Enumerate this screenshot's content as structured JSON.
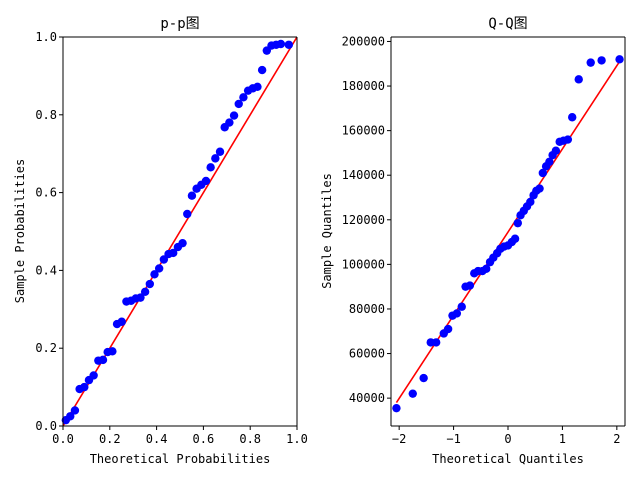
{
  "chart_data": [
    {
      "type": "scatter",
      "title": "p-p图",
      "xlabel": "Theoretical Probabilities",
      "ylabel": "Sample Probabilities",
      "xlim": [
        0,
        1
      ],
      "ylim": [
        0,
        1
      ],
      "xticks": [
        0.0,
        0.2,
        0.4,
        0.6,
        0.8,
        1.0
      ],
      "yticks": [
        0.0,
        0.2,
        0.4,
        0.6,
        0.8,
        1.0
      ],
      "xtick_labels": [
        "0.0",
        "0.2",
        "0.4",
        "0.6",
        "0.8",
        "1.0"
      ],
      "ytick_labels": [
        "0.0",
        "0.2",
        "0.4",
        "0.6",
        "0.8",
        "1.0"
      ],
      "point_color": "#0000ff",
      "line_color": "#ff0000",
      "reference_line": [
        [
          0,
          0
        ],
        [
          1,
          1
        ]
      ],
      "points": [
        [
          0.012,
          0.015
        ],
        [
          0.031,
          0.025
        ],
        [
          0.051,
          0.04
        ],
        [
          0.071,
          0.095
        ],
        [
          0.091,
          0.1
        ],
        [
          0.111,
          0.118
        ],
        [
          0.131,
          0.13
        ],
        [
          0.151,
          0.168
        ],
        [
          0.171,
          0.17
        ],
        [
          0.191,
          0.19
        ],
        [
          0.211,
          0.192
        ],
        [
          0.231,
          0.262
        ],
        [
          0.251,
          0.268
        ],
        [
          0.271,
          0.32
        ],
        [
          0.291,
          0.322
        ],
        [
          0.311,
          0.328
        ],
        [
          0.331,
          0.33
        ],
        [
          0.351,
          0.345
        ],
        [
          0.371,
          0.365
        ],
        [
          0.391,
          0.39
        ],
        [
          0.411,
          0.405
        ],
        [
          0.431,
          0.428
        ],
        [
          0.451,
          0.442
        ],
        [
          0.471,
          0.445
        ],
        [
          0.491,
          0.46
        ],
        [
          0.511,
          0.47
        ],
        [
          0.531,
          0.545
        ],
        [
          0.551,
          0.592
        ],
        [
          0.571,
          0.61
        ],
        [
          0.591,
          0.62
        ],
        [
          0.611,
          0.63
        ],
        [
          0.631,
          0.665
        ],
        [
          0.651,
          0.688
        ],
        [
          0.671,
          0.705
        ],
        [
          0.691,
          0.768
        ],
        [
          0.711,
          0.78
        ],
        [
          0.731,
          0.798
        ],
        [
          0.751,
          0.828
        ],
        [
          0.771,
          0.845
        ],
        [
          0.791,
          0.862
        ],
        [
          0.811,
          0.868
        ],
        [
          0.831,
          0.872
        ],
        [
          0.851,
          0.915
        ],
        [
          0.871,
          0.965
        ],
        [
          0.891,
          0.978
        ],
        [
          0.911,
          0.98
        ],
        [
          0.931,
          0.982
        ],
        [
          0.965,
          0.98
        ]
      ]
    },
    {
      "type": "scatter",
      "title": "Q-Q图",
      "xlabel": "Theoretical Quantiles",
      "ylabel": "Sample Quantiles",
      "xlim": [
        -2.15,
        2.15
      ],
      "ylim": [
        27500,
        202000
      ],
      "xticks": [
        -2,
        -1,
        0,
        1,
        2
      ],
      "yticks": [
        40000,
        60000,
        80000,
        100000,
        120000,
        140000,
        160000,
        180000,
        200000
      ],
      "xtick_labels": [
        "−2",
        "−1",
        "0",
        "1",
        "2"
      ],
      "ytick_labels": [
        "40000",
        "60000",
        "80000",
        "100000",
        "120000",
        "140000",
        "160000",
        "180000",
        "200000"
      ],
      "point_color": "#0000ff",
      "line_color": "#ff0000",
      "reference_line": [
        [
          -2.05,
          38000
        ],
        [
          2.05,
          191000
        ]
      ],
      "points": [
        [
          -2.05,
          35500
        ],
        [
          -1.75,
          42000
        ],
        [
          -1.55,
          49000
        ],
        [
          -1.42,
          65000
        ],
        [
          -1.32,
          65000
        ],
        [
          -1.18,
          69000
        ],
        [
          -1.1,
          71000
        ],
        [
          -1.02,
          77000
        ],
        [
          -0.94,
          78000
        ],
        [
          -0.85,
          81000
        ],
        [
          -0.78,
          90000
        ],
        [
          -0.7,
          90500
        ],
        [
          -0.62,
          96000
        ],
        [
          -0.55,
          97000
        ],
        [
          -0.47,
          97000
        ],
        [
          -0.4,
          98000
        ],
        [
          -0.33,
          101000
        ],
        [
          -0.27,
          103000
        ],
        [
          -0.2,
          105000
        ],
        [
          -0.14,
          107000
        ],
        [
          -0.07,
          108000
        ],
        [
          0.0,
          108500
        ],
        [
          0.07,
          110000
        ],
        [
          0.13,
          111500
        ],
        [
          0.18,
          118500
        ],
        [
          0.23,
          122000
        ],
        [
          0.29,
          124000
        ],
        [
          0.35,
          126000
        ],
        [
          0.41,
          128000
        ],
        [
          0.47,
          131000
        ],
        [
          0.52,
          133000
        ],
        [
          0.58,
          134000
        ],
        [
          0.64,
          141000
        ],
        [
          0.7,
          144000
        ],
        [
          0.76,
          146000
        ],
        [
          0.82,
          149000
        ],
        [
          0.88,
          151000
        ],
        [
          0.95,
          155000
        ],
        [
          1.02,
          155500
        ],
        [
          1.1,
          156000
        ],
        [
          1.18,
          166000
        ],
        [
          1.3,
          183000
        ],
        [
          1.52,
          190500
        ],
        [
          1.72,
          191500
        ],
        [
          2.05,
          192000
        ]
      ]
    }
  ]
}
